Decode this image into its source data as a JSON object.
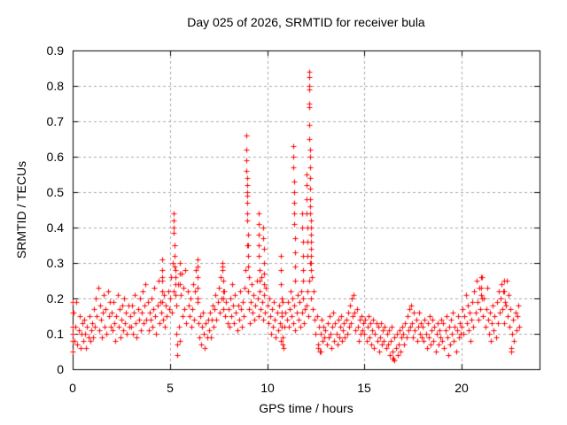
{
  "chart_data": {
    "type": "scatter",
    "title": "Day 025 of 2026, SRMTID for receiver bula",
    "xlabel": "GPS time / hours",
    "ylabel": "SRMTID / TECUs",
    "xlim": [
      0,
      24
    ],
    "ylim": [
      0,
      0.9
    ],
    "xticks": [
      0,
      5,
      10,
      15,
      20
    ],
    "xtick_labels": [
      "0",
      "5",
      "10",
      "15",
      "20"
    ],
    "yticks": [
      0,
      0.1,
      0.2,
      0.3,
      0.4,
      0.5,
      0.6,
      0.7,
      0.8,
      0.9
    ],
    "ytick_labels": [
      "0",
      "0.1",
      "0.2",
      "0.3",
      "0.4",
      "0.5",
      "0.6",
      "0.7",
      "0.8",
      "0.9"
    ],
    "grid": true,
    "grid_style": "dashed",
    "grid_color": "#a8a8a8",
    "legend": "none",
    "marker": {
      "shape": "plus",
      "color": "#ff0000",
      "size": 7
    },
    "series": [
      {
        "name": "SRMTID",
        "x0": 0.0,
        "dx": 0.05,
        "y": [
          0.1,
          0.16,
          0.08,
          0.12,
          0.19,
          0.07,
          0.11,
          0.15,
          0.06,
          0.1,
          0.13,
          0.08,
          0.14,
          0.1,
          0.06,
          0.12,
          0.09,
          0.15,
          0.08,
          0.11,
          0.13,
          0.09,
          0.17,
          0.12,
          0.2,
          0.15,
          0.23,
          0.11,
          0.18,
          0.14,
          0.09,
          0.16,
          0.21,
          0.12,
          0.17,
          0.1,
          0.22,
          0.15,
          0.19,
          0.12,
          0.16,
          0.11,
          0.19,
          0.13,
          0.08,
          0.15,
          0.21,
          0.12,
          0.17,
          0.09,
          0.14,
          0.18,
          0.11,
          0.2,
          0.13,
          0.16,
          0.1,
          0.18,
          0.12,
          0.15,
          0.12,
          0.18,
          0.1,
          0.16,
          0.21,
          0.13,
          0.09,
          0.17,
          0.14,
          0.2,
          0.11,
          0.16,
          0.22,
          0.13,
          0.18,
          0.24,
          0.14,
          0.19,
          0.11,
          0.16,
          0.14,
          0.2,
          0.12,
          0.17,
          0.23,
          0.15,
          0.1,
          0.18,
          0.25,
          0.13,
          0.19,
          0.16,
          0.26,
          0.14,
          0.21,
          0.12,
          0.18,
          0.15,
          0.22,
          0.17,
          0.2,
          0.26,
          0.16,
          0.3,
          0.22,
          0.35,
          0.28,
          0.18,
          0.24,
          0.12,
          0.08,
          0.21,
          0.27,
          0.15,
          0.23,
          0.17,
          0.28,
          0.13,
          0.22,
          0.18,
          0.15,
          0.2,
          0.12,
          0.17,
          0.24,
          0.14,
          0.22,
          0.28,
          0.19,
          0.13,
          0.09,
          0.15,
          0.07,
          0.12,
          0.16,
          0.1,
          0.06,
          0.13,
          0.09,
          0.14,
          0.11,
          0.16,
          0.09,
          0.14,
          0.18,
          0.12,
          0.17,
          0.21,
          0.14,
          0.19,
          0.23,
          0.16,
          0.26,
          0.2,
          0.29,
          0.17,
          0.22,
          0.15,
          0.19,
          0.13,
          0.17,
          0.12,
          0.2,
          0.15,
          0.24,
          0.18,
          0.13,
          0.21,
          0.16,
          0.11,
          0.18,
          0.14,
          0.22,
          0.17,
          0.12,
          0.19,
          0.15,
          0.23,
          0.28,
          0.35,
          0.22,
          0.17,
          0.13,
          0.19,
          0.24,
          0.16,
          0.21,
          0.14,
          0.18,
          0.25,
          0.2,
          0.15,
          0.22,
          0.17,
          0.26,
          0.19,
          0.14,
          0.21,
          0.16,
          0.23,
          0.18,
          0.13,
          0.2,
          0.15,
          0.1,
          0.17,
          0.12,
          0.19,
          0.14,
          0.09,
          0.16,
          0.11,
          0.18,
          0.13,
          0.08,
          0.15,
          0.19,
          0.06,
          0.12,
          0.16,
          0.14,
          0.19,
          0.12,
          0.17,
          0.22,
          0.15,
          0.2,
          0.13,
          0.18,
          0.11,
          0.16,
          0.21,
          0.14,
          0.19,
          0.12,
          0.22,
          0.16,
          0.2,
          0.13,
          0.17,
          0.18,
          0.22,
          0.15,
          0.25,
          0.3,
          0.2,
          0.26,
          0.17,
          0.22,
          0.14,
          0.1,
          0.15,
          0.07,
          0.12,
          0.05,
          0.1,
          0.14,
          0.08,
          0.12,
          0.09,
          0.11,
          0.07,
          0.13,
          0.09,
          0.15,
          0.1,
          0.06,
          0.12,
          0.16,
          0.08,
          0.13,
          0.1,
          0.07,
          0.14,
          0.09,
          0.12,
          0.15,
          0.08,
          0.11,
          0.13,
          0.09,
          0.14,
          0.1,
          0.16,
          0.12,
          0.18,
          0.13,
          0.2,
          0.15,
          0.21,
          0.16,
          0.11,
          0.17,
          0.12,
          0.08,
          0.14,
          0.1,
          0.15,
          0.11,
          0.13,
          0.1,
          0.14,
          0.08,
          0.12,
          0.15,
          0.09,
          0.13,
          0.07,
          0.11,
          0.14,
          0.06,
          0.1,
          0.13,
          0.08,
          0.12,
          0.05,
          0.09,
          0.13,
          0.07,
          0.11,
          0.08,
          0.12,
          0.06,
          0.1,
          0.07,
          0.11,
          0.04,
          0.08,
          0.12,
          0.05,
          0.03,
          0.09,
          0.06,
          0.1,
          0.04,
          0.07,
          0.11,
          0.05,
          0.09,
          0.12,
          0.1,
          0.07,
          0.13,
          0.09,
          0.15,
          0.11,
          0.17,
          0.12,
          0.18,
          0.13,
          0.09,
          0.16,
          0.11,
          0.14,
          0.08,
          0.12,
          0.16,
          0.1,
          0.13,
          0.09,
          0.12,
          0.08,
          0.14,
          0.1,
          0.06,
          0.13,
          0.09,
          0.15,
          0.07,
          0.11,
          0.14,
          0.08,
          0.12,
          0.05,
          0.1,
          0.13,
          0.07,
          0.11,
          0.09,
          0.14,
          0.08,
          0.13,
          0.06,
          0.11,
          0.15,
          0.09,
          0.04,
          0.12,
          0.07,
          0.14,
          0.1,
          0.16,
          0.08,
          0.12,
          0.05,
          0.11,
          0.15,
          0.09,
          0.13,
          0.1,
          0.12,
          0.17,
          0.1,
          0.15,
          0.21,
          0.13,
          0.18,
          0.11,
          0.16,
          0.08,
          0.14,
          0.19,
          0.12,
          0.22,
          0.16,
          0.25,
          0.19,
          0.14,
          0.23,
          0.17,
          0.21,
          0.26,
          0.15,
          0.2,
          0.12,
          0.17,
          0.23,
          0.14,
          0.1,
          0.16,
          0.08,
          0.13,
          0.18,
          0.11,
          0.15,
          0.09,
          0.19,
          0.13,
          0.22,
          0.16,
          0.2,
          0.24,
          0.17,
          0.22,
          0.13,
          0.18,
          0.25,
          0.15,
          0.21,
          0.12,
          0.17,
          0.05,
          0.1,
          0.14,
          0.08,
          0.16,
          0.11,
          0.15,
          0.18,
          0.12
        ]
      }
    ],
    "extra_points": [
      [
        0.02,
        0.19
      ],
      [
        0.02,
        0.16
      ],
      [
        0.02,
        0.12
      ],
      [
        0.02,
        0.08
      ],
      [
        0.02,
        0.05
      ],
      [
        4.6,
        0.31
      ],
      [
        4.6,
        0.28
      ],
      [
        4.6,
        0.25
      ],
      [
        4.61,
        0.22
      ],
      [
        4.62,
        0.19
      ],
      [
        5.2,
        0.44
      ],
      [
        5.2,
        0.42
      ],
      [
        5.2,
        0.4
      ],
      [
        5.21,
        0.385
      ],
      [
        5.22,
        0.35
      ],
      [
        5.25,
        0.32
      ],
      [
        5.25,
        0.29
      ],
      [
        5.27,
        0.26
      ],
      [
        5.3,
        0.24
      ],
      [
        5.3,
        0.21
      ],
      [
        5.33,
        0.18
      ],
      [
        5.35,
        0.1
      ],
      [
        5.36,
        0.07
      ],
      [
        5.37,
        0.04
      ],
      [
        5.5,
        0.3
      ],
      [
        5.5,
        0.27
      ],
      [
        5.52,
        0.24
      ],
      [
        6.4,
        0.31
      ],
      [
        6.4,
        0.29
      ],
      [
        6.4,
        0.26
      ],
      [
        6.42,
        0.23
      ],
      [
        6.43,
        0.2
      ],
      [
        7.7,
        0.3
      ],
      [
        7.7,
        0.28
      ],
      [
        7.72,
        0.25
      ],
      [
        7.73,
        0.22
      ],
      [
        7.75,
        0.2
      ],
      [
        8.93,
        0.66
      ],
      [
        8.93,
        0.62
      ],
      [
        8.94,
        0.59
      ],
      [
        8.94,
        0.56
      ],
      [
        8.95,
        0.54
      ],
      [
        8.95,
        0.52
      ],
      [
        8.96,
        0.5
      ],
      [
        8.96,
        0.49
      ],
      [
        8.97,
        0.47
      ],
      [
        8.97,
        0.44
      ],
      [
        8.98,
        0.42
      ],
      [
        9.0,
        0.38
      ],
      [
        9.0,
        0.35
      ],
      [
        9.02,
        0.32
      ],
      [
        9.03,
        0.29
      ],
      [
        9.05,
        0.26
      ],
      [
        9.55,
        0.44
      ],
      [
        9.55,
        0.41
      ],
      [
        9.56,
        0.38
      ],
      [
        9.57,
        0.35
      ],
      [
        9.58,
        0.32
      ],
      [
        9.6,
        0.28
      ],
      [
        9.6,
        0.25
      ],
      [
        9.8,
        0.4
      ],
      [
        9.8,
        0.37
      ],
      [
        9.82,
        0.34
      ],
      [
        9.83,
        0.3
      ],
      [
        9.85,
        0.27
      ],
      [
        9.85,
        0.24
      ],
      [
        10.7,
        0.32
      ],
      [
        10.7,
        0.28
      ],
      [
        10.72,
        0.24
      ],
      [
        10.73,
        0.2
      ],
      [
        10.75,
        0.16
      ],
      [
        10.77,
        0.12
      ],
      [
        10.78,
        0.09
      ],
      [
        10.8,
        0.07
      ],
      [
        11.35,
        0.63
      ],
      [
        11.35,
        0.6
      ],
      [
        11.36,
        0.57
      ],
      [
        11.37,
        0.53
      ],
      [
        11.38,
        0.5
      ],
      [
        11.38,
        0.47
      ],
      [
        11.4,
        0.44
      ],
      [
        11.4,
        0.41
      ],
      [
        11.42,
        0.37
      ],
      [
        11.43,
        0.33
      ],
      [
        11.45,
        0.29
      ],
      [
        11.45,
        0.25
      ],
      [
        11.8,
        0.44
      ],
      [
        11.8,
        0.4
      ],
      [
        11.82,
        0.36
      ],
      [
        11.83,
        0.32
      ],
      [
        11.85,
        0.28
      ],
      [
        11.85,
        0.25
      ],
      [
        12.0,
        0.55
      ],
      [
        12.0,
        0.52
      ],
      [
        12.02,
        0.48
      ],
      [
        12.03,
        0.44
      ],
      [
        12.05,
        0.4
      ],
      [
        12.05,
        0.36
      ],
      [
        12.07,
        0.32
      ],
      [
        12.15,
        0.84
      ],
      [
        12.15,
        0.825
      ],
      [
        12.16,
        0.8
      ],
      [
        12.16,
        0.79
      ],
      [
        12.17,
        0.75
      ],
      [
        12.17,
        0.74
      ],
      [
        12.18,
        0.69
      ],
      [
        12.18,
        0.65
      ],
      [
        12.19,
        0.62
      ],
      [
        12.19,
        0.6
      ],
      [
        12.2,
        0.57
      ],
      [
        12.2,
        0.54
      ],
      [
        12.21,
        0.51
      ],
      [
        12.21,
        0.48
      ],
      [
        12.22,
        0.46
      ],
      [
        12.22,
        0.44
      ],
      [
        12.23,
        0.42
      ],
      [
        12.23,
        0.4
      ],
      [
        12.24,
        0.38
      ],
      [
        12.24,
        0.36
      ],
      [
        12.25,
        0.34
      ],
      [
        12.25,
        0.32
      ],
      [
        12.26,
        0.3
      ],
      [
        12.27,
        0.28
      ],
      [
        12.6,
        0.06
      ],
      [
        12.7,
        0.05
      ],
      [
        12.75,
        0.05
      ],
      [
        16.45,
        0.03
      ],
      [
        16.55,
        0.025
      ],
      [
        21.0,
        0.26
      ],
      [
        21.0,
        0.23
      ],
      [
        21.02,
        0.2
      ],
      [
        22.2,
        0.25
      ],
      [
        22.2,
        0.22
      ],
      [
        22.22,
        0.19
      ],
      [
        22.55,
        0.06
      ],
      [
        22.56,
        0.05
      ]
    ]
  }
}
